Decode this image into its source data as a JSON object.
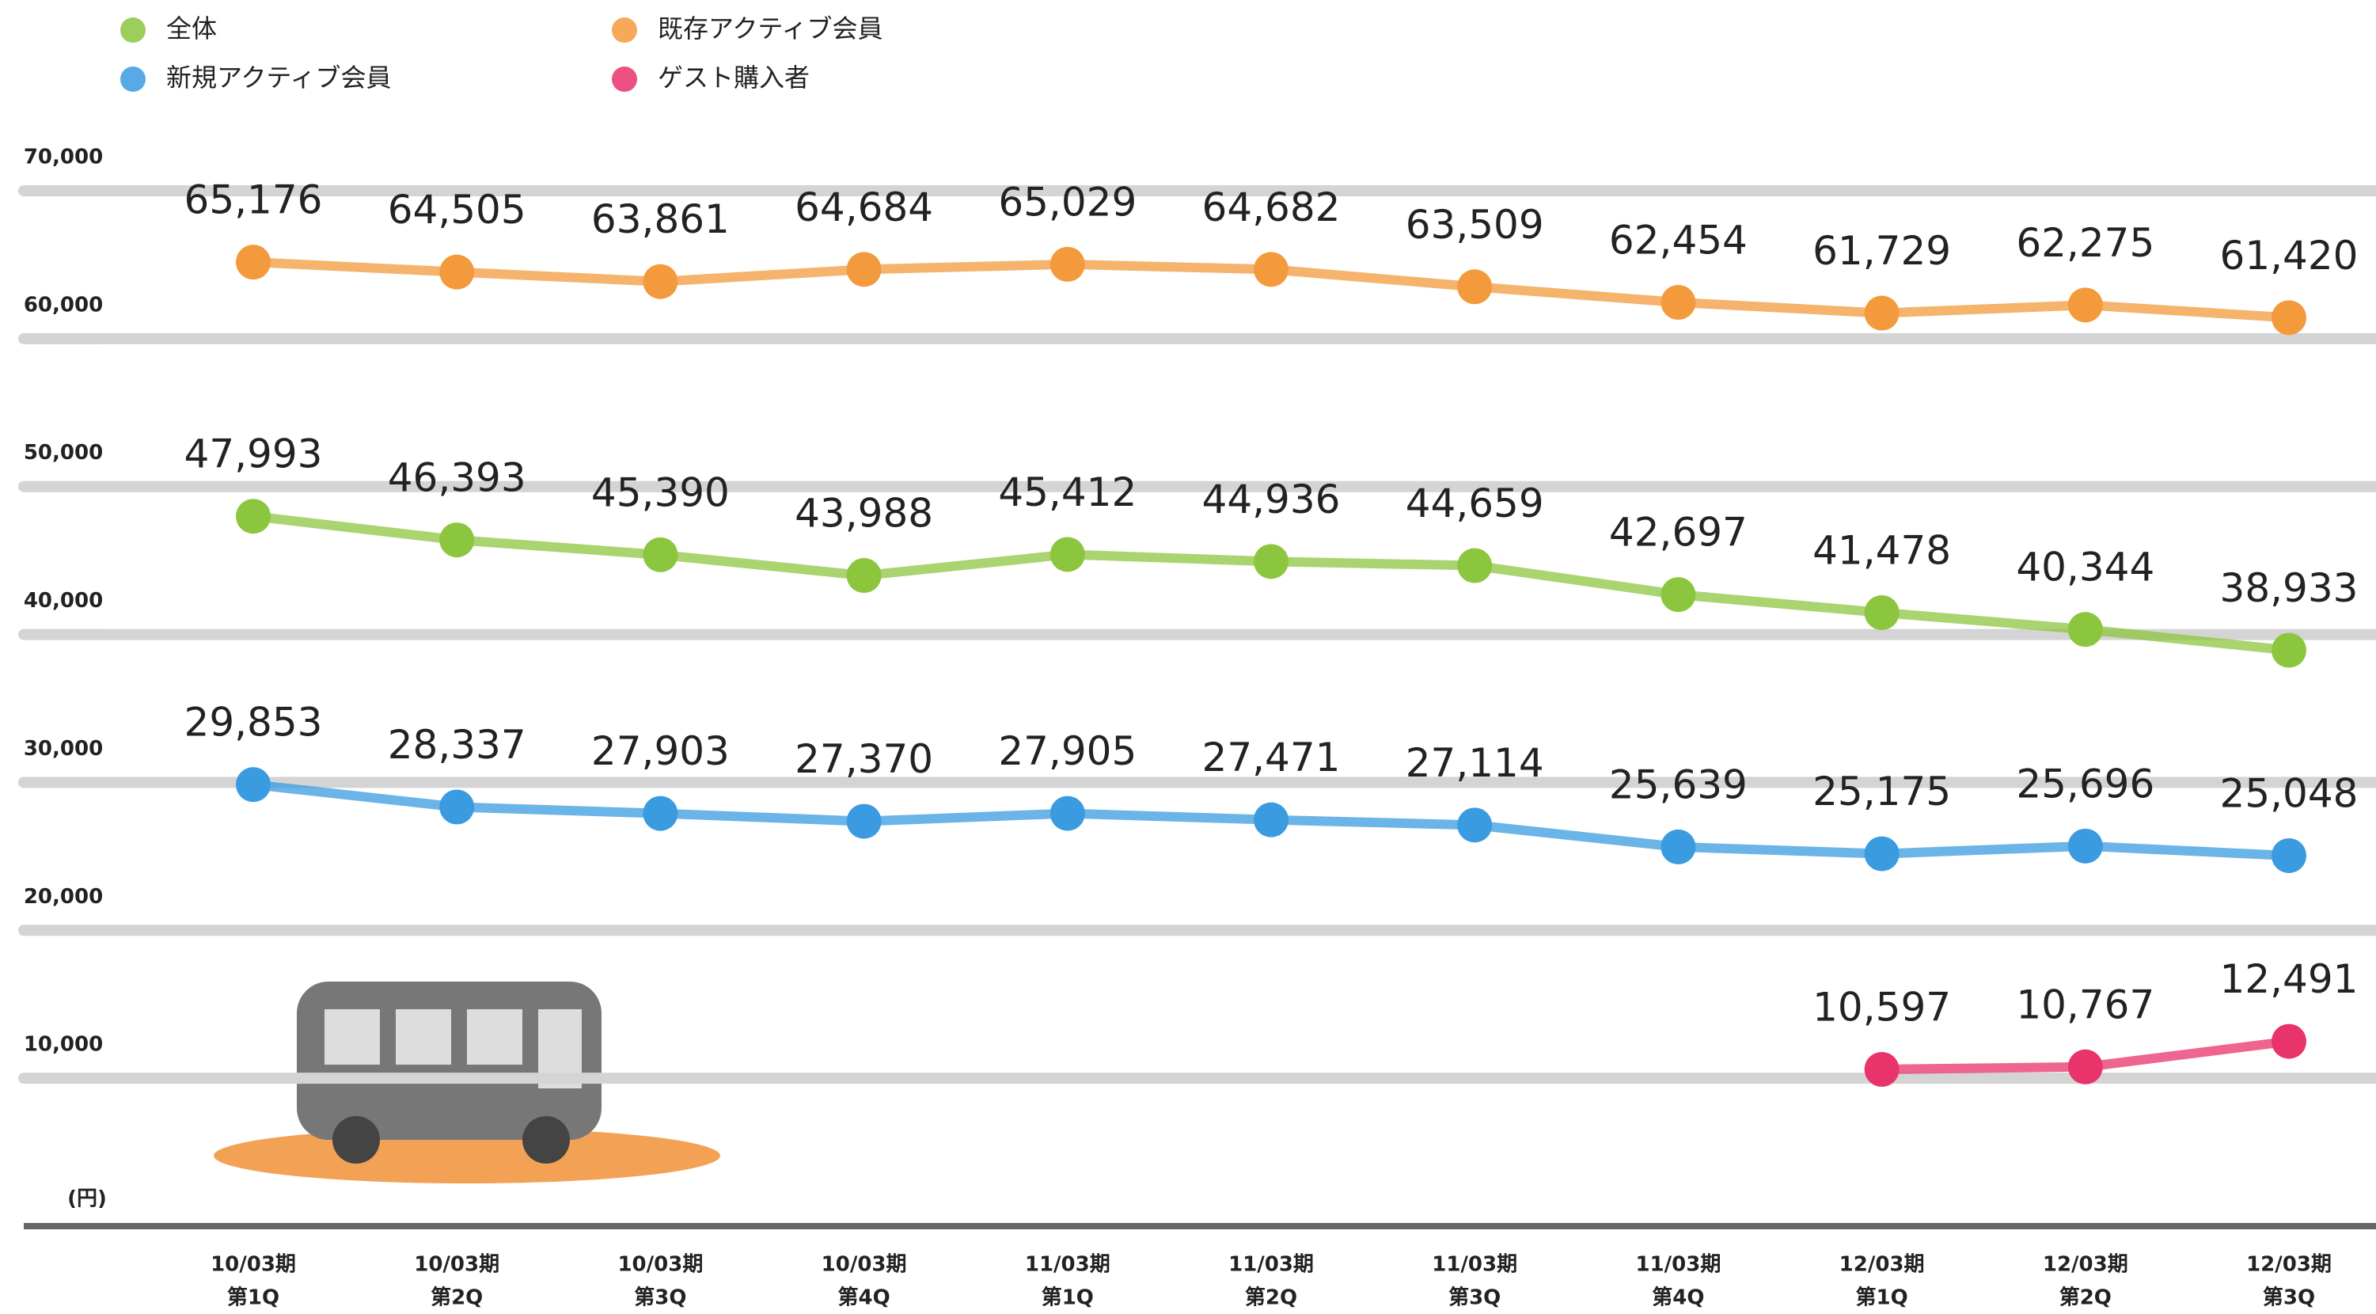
{
  "chart_data": {
    "type": "line",
    "y_label": "(円)",
    "categories": [
      [
        "10/03期",
        "第1Q"
      ],
      [
        "10/03期",
        "第2Q"
      ],
      [
        "10/03期",
        "第3Q"
      ],
      [
        "10/03期",
        "第4Q"
      ],
      [
        "11/03期",
        "第1Q"
      ],
      [
        "11/03期",
        "第2Q"
      ],
      [
        "11/03期",
        "第3Q"
      ],
      [
        "11/03期",
        "第4Q"
      ],
      [
        "12/03期",
        "第1Q"
      ],
      [
        "12/03期",
        "第2Q"
      ],
      [
        "12/03期",
        "第3Q"
      ]
    ],
    "series": [
      {
        "name": "全体",
        "color": "#8cc63f",
        "values": [
          47993,
          46393,
          45390,
          43988,
          45412,
          44936,
          44659,
          42697,
          41478,
          40344,
          38933
        ],
        "value_labels": [
          "47,993",
          "46,393",
          "45,390",
          "43,988",
          "45,412",
          "44,936",
          "44,659",
          "42,697",
          "41,478",
          "40,344",
          "38,933"
        ]
      },
      {
        "name": "新規アクティブ会員",
        "color": "#3a9be0",
        "values": [
          29853,
          28337,
          27903,
          27370,
          27905,
          27471,
          27114,
          25639,
          25175,
          25696,
          25048
        ],
        "value_labels": [
          "29,853",
          "28,337",
          "27,903",
          "27,370",
          "27,905",
          "27,471",
          "27,114",
          "25,639",
          "25,175",
          "25,696",
          "25,048"
        ]
      },
      {
        "name": "既存アクティブ会員",
        "color": "#f39a3c",
        "values": [
          65176,
          64505,
          63861,
          64684,
          65029,
          64682,
          63509,
          62454,
          61729,
          62275,
          61420
        ],
        "value_labels": [
          "65,176",
          "64,505",
          "63,861",
          "64,684",
          "65,029",
          "64,682",
          "63,509",
          "62,454",
          "61,729",
          "62,275",
          "61,420"
        ]
      },
      {
        "name": "ゲスト購入者",
        "color": "#e8336b",
        "values": [
          null,
          null,
          null,
          null,
          null,
          null,
          null,
          null,
          10597,
          10767,
          12491
        ],
        "value_labels": [
          null,
          null,
          null,
          null,
          null,
          null,
          null,
          null,
          "10,597",
          "10,767",
          "12,491"
        ]
      }
    ],
    "ylim": [
      0,
      70000
    ],
    "yticks": [
      {
        "value": 10000,
        "label": "10,000"
      },
      {
        "value": 20000,
        "label": "20,000"
      },
      {
        "value": 30000,
        "label": "30,000"
      },
      {
        "value": 40000,
        "label": "40,000"
      },
      {
        "value": 50000,
        "label": "50,000"
      },
      {
        "value": 60000,
        "label": "60,000"
      },
      {
        "value": 70000,
        "label": "70,000"
      }
    ],
    "grid": true
  }
}
